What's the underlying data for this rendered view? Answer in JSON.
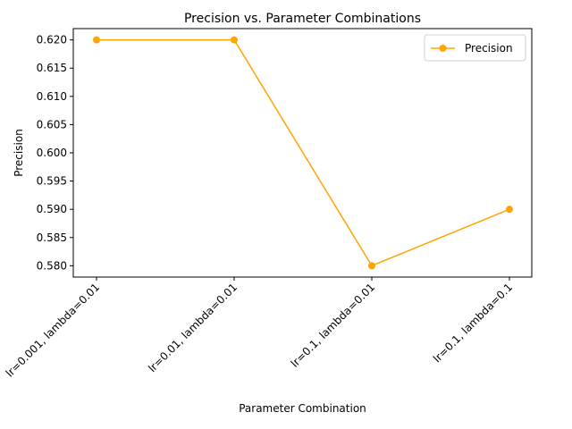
{
  "chart_data": {
    "type": "line",
    "title": "Precision vs. Parameter Combinations",
    "xlabel": "Parameter Combination",
    "ylabel": "Precision",
    "categories": [
      "lr=0.001, lambda=0.01",
      "lr=0.01, lambda=0.01",
      "lr=0.1, lambda=0.01",
      "lr=0.1, lambda=0.1"
    ],
    "series": [
      {
        "name": "Precision",
        "values": [
          0.62,
          0.62,
          0.58,
          0.59
        ],
        "color": "#ffa500",
        "marker": "circle"
      }
    ],
    "ylim": [
      0.578,
      0.622
    ],
    "yticks": [
      "0.580",
      "0.585",
      "0.590",
      "0.595",
      "0.600",
      "0.605",
      "0.610",
      "0.615",
      "0.620"
    ],
    "grid": false,
    "legend": "top-right"
  }
}
